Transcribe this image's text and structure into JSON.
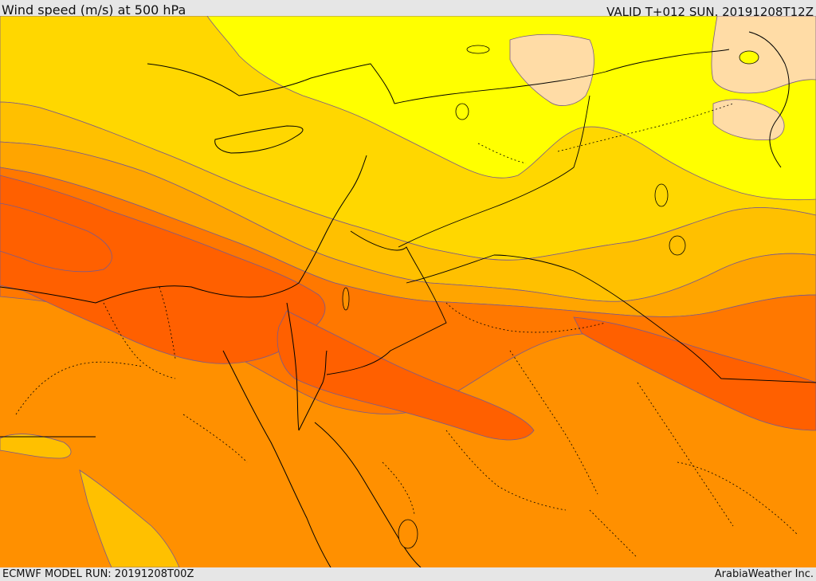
{
  "header": {
    "title": "Wind speed (m/s) at 500 hPa",
    "valid_time": "VALID T+012 SUN. 20191208T12Z"
  },
  "footer": {
    "model_run": "ECMWF MODEL RUN: 20191208T00Z",
    "credit": "ArabiaWeather Inc."
  },
  "map": {
    "field": "wind speed",
    "level": "500 hPa",
    "units": "m/s",
    "colors": {
      "pale": "#ffdca6",
      "yellow": "#ffff00",
      "gold": "#ffd700",
      "amber": "#ffc000",
      "orange_light": "#ffa500",
      "orange": "#ff9000",
      "orange_dark": "#ff7800",
      "red_orange": "#ff6000",
      "contour_line": "#7a5a8c",
      "coastline": "#000000",
      "border_dotted": "#000000"
    }
  }
}
